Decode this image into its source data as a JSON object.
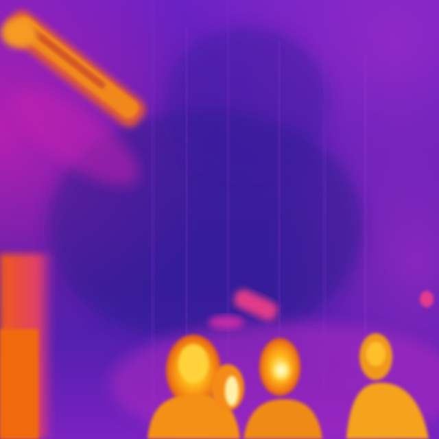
{
  "image": {
    "kind": "thermal-camera-frame",
    "palette": "ironbow",
    "colors": {
      "cold": "#3a1f9a",
      "cool": "#5a23b8",
      "mid": "#a020c0",
      "warm": "#e0307a",
      "hot": "#f07a18",
      "hottest": "#fff0a0"
    }
  }
}
